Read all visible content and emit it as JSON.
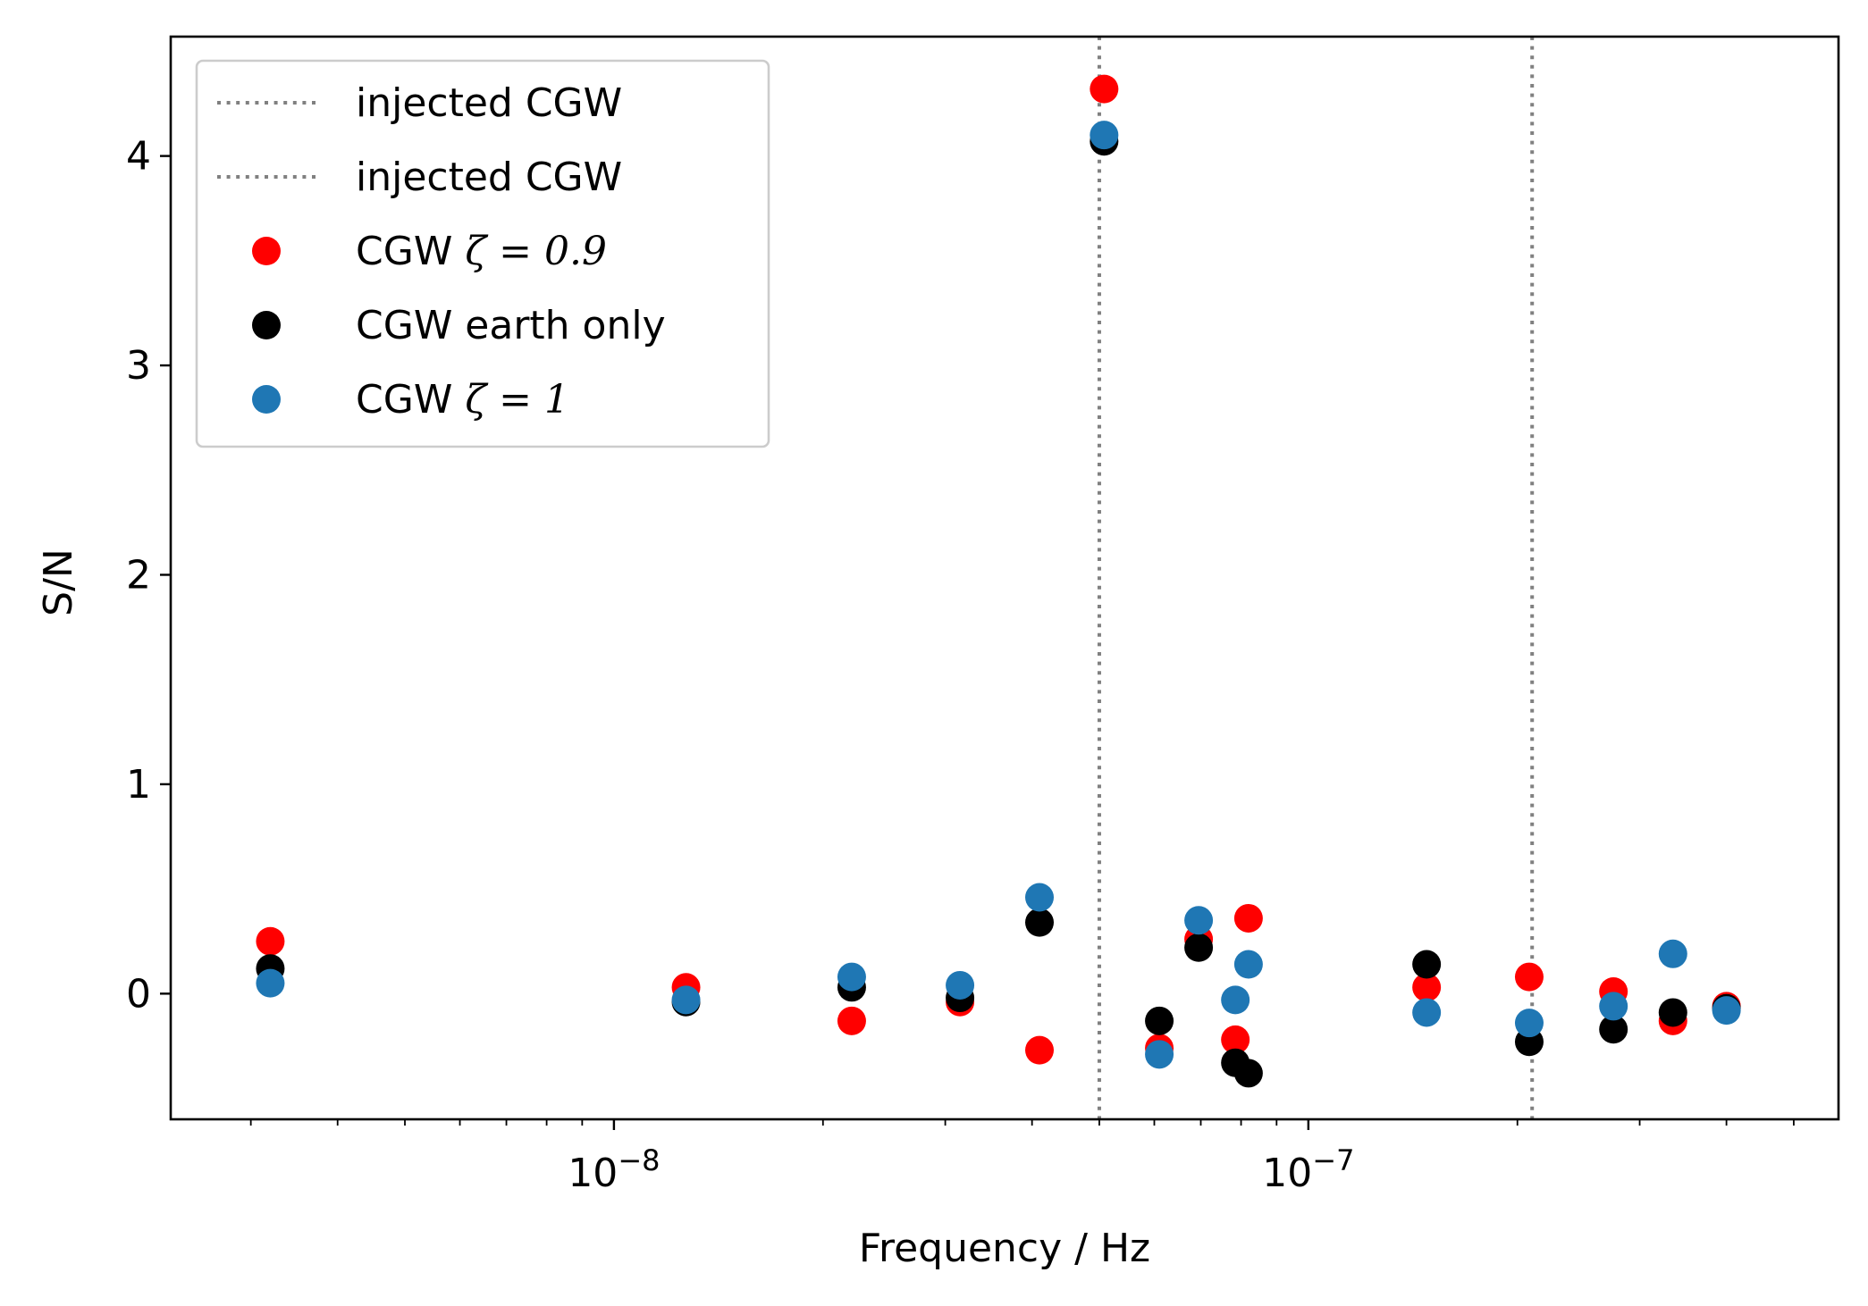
{
  "chart_data": {
    "type": "scatter",
    "title": "",
    "xlabel": "Frequency / Hz",
    "ylabel": "S/N",
    "x_scale": "log",
    "xlim": [
      2.3e-09,
      5.8e-07
    ],
    "ylim": [
      -0.6,
      4.57
    ],
    "x_major_ticks": [
      {
        "value": 1e-08,
        "base": "10",
        "exponent": "−8"
      },
      {
        "value": 1e-07,
        "base": "10",
        "exponent": "−7"
      }
    ],
    "y_ticks": [
      {
        "value": 0,
        "label": "0"
      },
      {
        "value": 1,
        "label": "1"
      },
      {
        "value": 2,
        "label": "2"
      },
      {
        "value": 3,
        "label": "3"
      },
      {
        "value": 4,
        "label": "4"
      }
    ],
    "vlines": [
      {
        "x": 5e-08,
        "label": "injected CGW",
        "color": "#808080",
        "style": "dotted"
      },
      {
        "x": 2.1e-07,
        "label": "injected CGW",
        "color": "#808080",
        "style": "dotted"
      }
    ],
    "series": [
      {
        "name_prefix": "CGW ",
        "name_math": "ζ = 0.9",
        "color": "#ff0000",
        "points": [
          {
            "x": 3.2e-09,
            "y": 0.25
          },
          {
            "x": 1.27e-08,
            "y": 0.03
          },
          {
            "x": 2.2e-08,
            "y": -0.13
          },
          {
            "x": 3.15e-08,
            "y": -0.04
          },
          {
            "x": 4.1e-08,
            "y": -0.27
          },
          {
            "x": 5.08e-08,
            "y": 4.32
          },
          {
            "x": 6.1e-08,
            "y": -0.26
          },
          {
            "x": 6.95e-08,
            "y": 0.26
          },
          {
            "x": 7.85e-08,
            "y": -0.22
          },
          {
            "x": 8.2e-08,
            "y": 0.36
          },
          {
            "x": 1.48e-07,
            "y": 0.03
          },
          {
            "x": 2.08e-07,
            "y": 0.08
          },
          {
            "x": 2.75e-07,
            "y": 0.01
          },
          {
            "x": 3.35e-07,
            "y": -0.13
          },
          {
            "x": 4e-07,
            "y": -0.06
          }
        ]
      },
      {
        "name": "CGW earth only",
        "color": "#000000",
        "points": [
          {
            "x": 3.2e-09,
            "y": 0.12
          },
          {
            "x": 1.27e-08,
            "y": -0.04
          },
          {
            "x": 2.2e-08,
            "y": 0.03
          },
          {
            "x": 3.15e-08,
            "y": -0.02
          },
          {
            "x": 4.1e-08,
            "y": 0.34
          },
          {
            "x": 5.08e-08,
            "y": 4.07
          },
          {
            "x": 6.1e-08,
            "y": -0.13
          },
          {
            "x": 6.95e-08,
            "y": 0.22
          },
          {
            "x": 7.85e-08,
            "y": -0.33
          },
          {
            "x": 8.2e-08,
            "y": -0.38
          },
          {
            "x": 1.48e-07,
            "y": 0.14
          },
          {
            "x": 2.08e-07,
            "y": -0.23
          },
          {
            "x": 2.75e-07,
            "y": -0.17
          },
          {
            "x": 3.35e-07,
            "y": -0.09
          },
          {
            "x": 4e-07,
            "y": -0.07
          }
        ]
      },
      {
        "name_prefix": "CGW ",
        "name_math": "ζ = 1",
        "color": "#1f77b4",
        "points": [
          {
            "x": 3.2e-09,
            "y": 0.05
          },
          {
            "x": 1.27e-08,
            "y": -0.03
          },
          {
            "x": 2.2e-08,
            "y": 0.08
          },
          {
            "x": 3.15e-08,
            "y": 0.04
          },
          {
            "x": 4.1e-08,
            "y": 0.46
          },
          {
            "x": 5.08e-08,
            "y": 4.1
          },
          {
            "x": 6.1e-08,
            "y": -0.29
          },
          {
            "x": 6.95e-08,
            "y": 0.35
          },
          {
            "x": 7.85e-08,
            "y": -0.03
          },
          {
            "x": 8.2e-08,
            "y": 0.14
          },
          {
            "x": 1.48e-07,
            "y": -0.09
          },
          {
            "x": 2.08e-07,
            "y": -0.14
          },
          {
            "x": 2.75e-07,
            "y": -0.06
          },
          {
            "x": 3.35e-07,
            "y": 0.19
          },
          {
            "x": 4e-07,
            "y": -0.08
          }
        ]
      }
    ],
    "legend_position": "upper-left",
    "grid": false
  }
}
